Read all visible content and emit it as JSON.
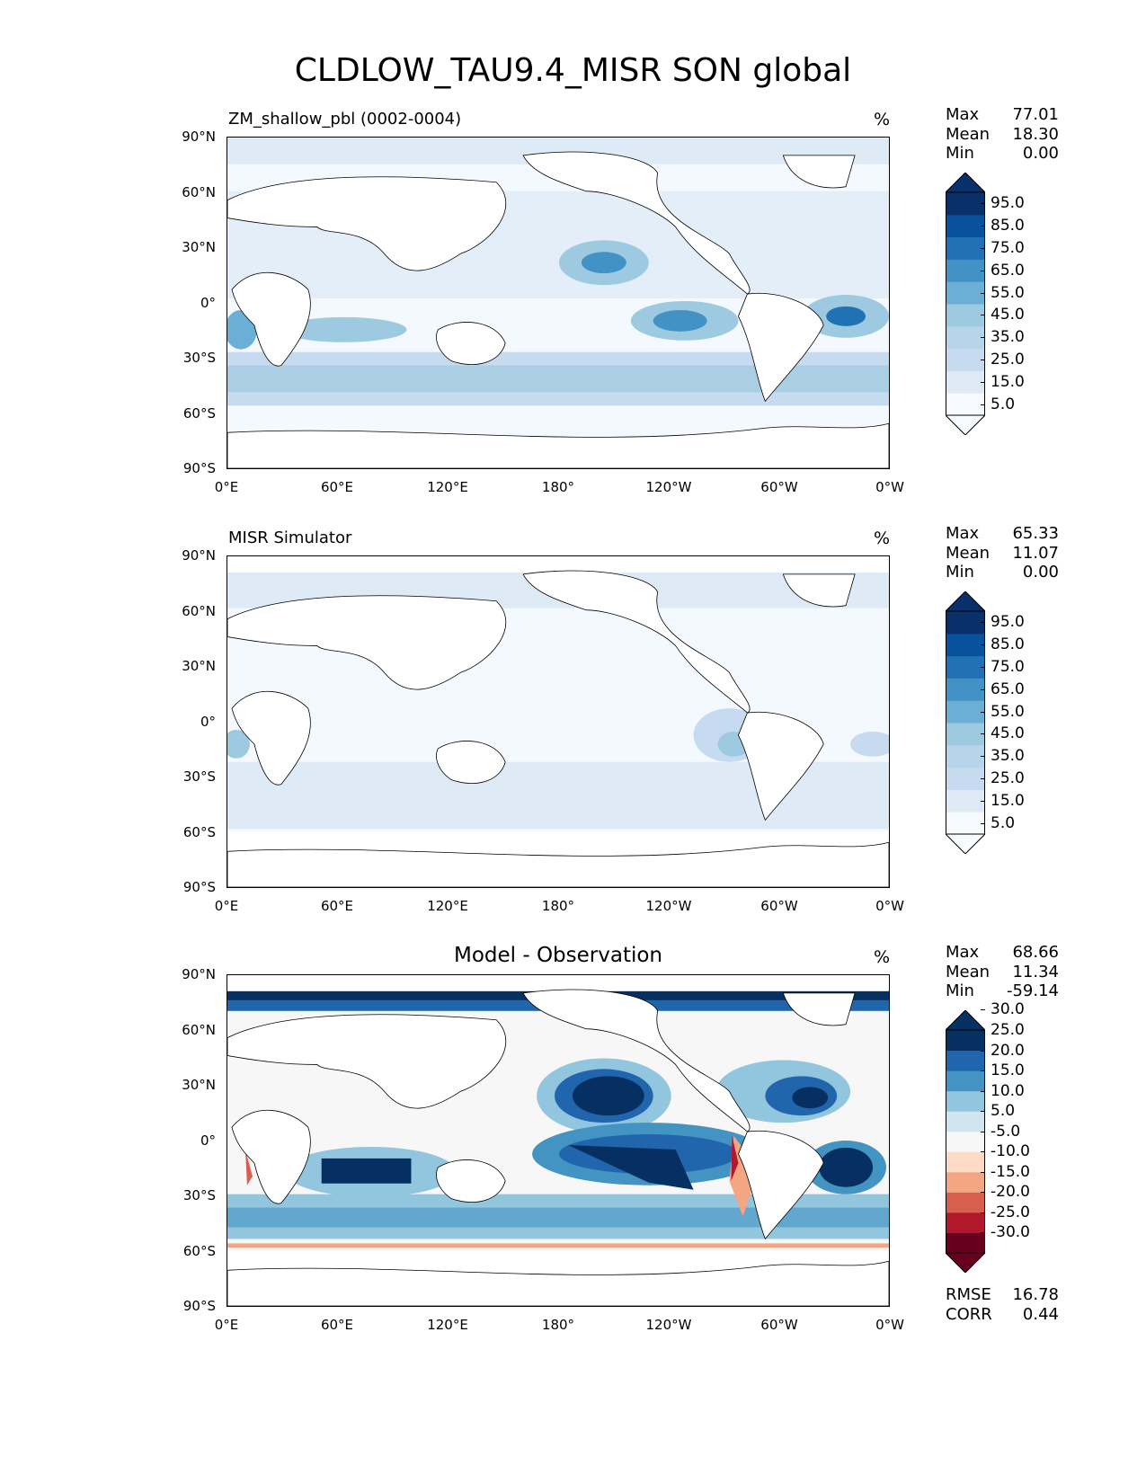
{
  "title": "CLDLOW_TAU9.4_MISR SON global",
  "colors": {
    "blues": [
      "#f7fbff",
      "#deebf7",
      "#c6dbef",
      "#b6d4ea",
      "#9ecae1",
      "#6baed6",
      "#4292c6",
      "#2171b5",
      "#08519c",
      "#08306b"
    ],
    "diff": [
      "#67001f",
      "#b2182b",
      "#d6604d",
      "#f4a582",
      "#fddbc7",
      "#f7f7f7",
      "#d1e5f0",
      "#92c5de",
      "#4393c3",
      "#2166ac",
      "#053061"
    ]
  },
  "chart_data": [
    {
      "type": "heatmap",
      "panel_title": "ZM_shallow_pbl (0002-0004)",
      "units": "%",
      "stats": {
        "Max": "77.01",
        "Mean": "18.30",
        "Min": "0.00"
      },
      "colorbar": {
        "levels": [
          "5.0",
          "15.0",
          "25.0",
          "35.0",
          "45.0",
          "55.0",
          "65.0",
          "75.0",
          "85.0",
          "95.0"
        ],
        "extend": "both"
      },
      "xticks": [
        "0°E",
        "60°E",
        "120°E",
        "180°",
        "120°W",
        "60°W",
        "0°W"
      ],
      "yticks": [
        "90°N",
        "60°N",
        "30°N",
        "0°",
        "30°S",
        "60°S",
        "90°S"
      ],
      "xlim": [
        0,
        360
      ],
      "ylim": [
        -90,
        90
      ]
    },
    {
      "type": "heatmap",
      "panel_title": "MISR Simulator",
      "units": "%",
      "stats": {
        "Max": "65.33",
        "Mean": "11.07",
        "Min": "0.00"
      },
      "colorbar": {
        "levels": [
          "5.0",
          "15.0",
          "25.0",
          "35.0",
          "45.0",
          "55.0",
          "65.0",
          "75.0",
          "85.0",
          "95.0"
        ],
        "extend": "both"
      },
      "xticks": [
        "0°E",
        "60°E",
        "120°E",
        "180°",
        "120°W",
        "60°W",
        "0°W"
      ],
      "yticks": [
        "90°N",
        "60°N",
        "30°N",
        "0°",
        "30°S",
        "60°S",
        "90°S"
      ],
      "xlim": [
        0,
        360
      ],
      "ylim": [
        -90,
        90
      ]
    },
    {
      "type": "heatmap",
      "panel_title": "Model - Observation",
      "units": "%",
      "stats": {
        "Max": "68.66",
        "Mean": "11.34",
        "Min": "-59.14"
      },
      "colorbar": {
        "levels": [
          "-30.0",
          "-25.0",
          "-20.0",
          "-15.0",
          "-10.0",
          "-5.0",
          "5.0",
          "10.0",
          "15.0",
          "20.0",
          "25.0",
          "30.0"
        ],
        "extend": "both"
      },
      "footer": {
        "RMSE": "16.78",
        "CORR": "0.44"
      },
      "xticks": [
        "0°E",
        "60°E",
        "120°E",
        "180°",
        "120°W",
        "60°W",
        "0°W"
      ],
      "yticks": [
        "90°N",
        "60°N",
        "30°N",
        "0°",
        "30°S",
        "60°S",
        "90°S"
      ],
      "xlim": [
        0,
        360
      ],
      "ylim": [
        -90,
        90
      ]
    }
  ]
}
